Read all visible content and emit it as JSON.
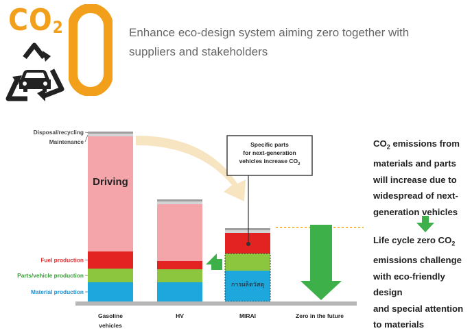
{
  "logo": {
    "co2_text": "CO",
    "co2_sub": "2",
    "zero": "0"
  },
  "headline": "Enhance eco-design system aiming zero together with suppliers and stakeholders",
  "colors": {
    "orange": "#f2a01c",
    "disposal": "#9e9e9e",
    "maintenance": "#d4d4d4",
    "driving": "#f4a5aa",
    "fuel": "#e32222",
    "parts": "#8cc63f",
    "material": "#1ea7dc",
    "arrow_green": "#3db049",
    "arrow_cream": "#f7e5c2",
    "ground": "#b7b7b7",
    "label_red": "#e03030",
    "label_green": "#3a9d3a",
    "label_blue": "#1f8fce"
  },
  "callout": {
    "line1": "Specific parts",
    "line2": "for next-generation",
    "line3_pre": "vehicles increase CO",
    "line3_sub": "2"
  },
  "mirai_inner_text": "การผลิตวัสดุ",
  "side_text": {
    "p1_pre": "CO",
    "p1_sub": "2",
    "p1_rest": " emissions from",
    "p2": "materials and parts",
    "p3": "will increase due to",
    "p4": "widespread of next-",
    "p5": "generation vehicles",
    "q1_pre": "Life cycle zero CO",
    "q1_sub": "2",
    "q2": "emissions challenge",
    "q3": "with eco-friendly design",
    "q4": "and special attention",
    "q5": "to materials"
  },
  "chart_data": {
    "type": "bar",
    "stacked": true,
    "categories": [
      "Gasoline vehicles",
      "HV",
      "MIRAI",
      "Zero in the future"
    ],
    "series": [
      {
        "name": "Material production",
        "color": "#1ea7dc",
        "values": [
          28,
          28,
          45,
          0
        ]
      },
      {
        "name": "Parts/vehicle production",
        "color": "#8cc63f",
        "values": [
          20,
          19,
          25,
          0
        ]
      },
      {
        "name": "Fuel production",
        "color": "#e32222",
        "values": [
          25,
          12,
          30,
          0
        ]
      },
      {
        "name": "Driving",
        "color": "#f4a5aa",
        "values": [
          168,
          83,
          0,
          0
        ]
      },
      {
        "name": "Maintenance",
        "color": "#d4d4d4",
        "values": [
          4,
          4,
          4,
          0
        ]
      },
      {
        "name": "Disposal/recycling",
        "color": "#9e9e9e",
        "values": [
          3,
          3,
          3,
          0
        ]
      }
    ],
    "inner_label": {
      "series": "Driving",
      "category": "Gasoline vehicles",
      "text": "Driving"
    },
    "ylim": [
      0,
      255
    ],
    "axes_visible": false,
    "legend": "left-side labels"
  }
}
